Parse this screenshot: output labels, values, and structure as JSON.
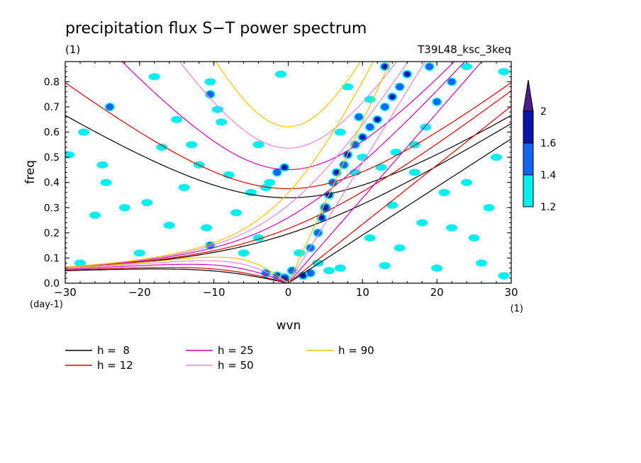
{
  "chart_data": {
    "type": "line",
    "title": "precipitation flux S−T power spectrum",
    "units_label": "(1)",
    "run_label": "T39L48_ksc_3keq",
    "xlabel": "wvn",
    "ylabel": "freq",
    "x_unit": "(1)",
    "y_unit": "(day-1)",
    "xlim": [
      -30,
      30
    ],
    "ylim": [
      0,
      0.88
    ],
    "x_ticks": [
      -30,
      -20,
      -10,
      0,
      10,
      20,
      30
    ],
    "x_tick_labels": [
      "−30",
      "−20",
      "−10",
      "0",
      "10",
      "20",
      "30"
    ],
    "y_ticks": [
      0,
      0.1,
      0.2,
      0.3,
      0.4,
      0.5,
      0.6,
      0.7,
      0.8
    ],
    "y_tick_labels": [
      "0.0",
      "0.1",
      "0.2",
      "0.3",
      "0.4",
      "0.5",
      "0.6",
      "0.7",
      "0.8"
    ],
    "legend": [
      {
        "label": "h =  8",
        "color": "#000000"
      },
      {
        "label": "h = 12",
        "color": "#d90000"
      },
      {
        "label": "h = 25",
        "color": "#d400b4"
      },
      {
        "label": "h = 50",
        "color": "#e887e0"
      },
      {
        "label": "h = 90",
        "color": "#f0c800"
      }
    ],
    "colorbar": {
      "labels": [
        "2",
        "1.6",
        "1.4",
        "1.2"
      ],
      "colors": [
        "#4b1e8c",
        "#0a14a8",
        "#1464f0",
        "#00f0f0"
      ]
    },
    "power_blobs": [
      {
        "x": -29.5,
        "y": 0.51,
        "level": 0
      },
      {
        "x": -27.5,
        "y": 0.6,
        "level": 0
      },
      {
        "x": -25,
        "y": 0.47,
        "level": 0
      },
      {
        "x": -24.5,
        "y": 0.4,
        "level": 0
      },
      {
        "x": -24,
        "y": 0.7,
        "level": 1
      },
      {
        "x": -26,
        "y": 0.27,
        "level": 0
      },
      {
        "x": -18,
        "y": 0.82,
        "level": 0
      },
      {
        "x": -17,
        "y": 0.54,
        "level": 0
      },
      {
        "x": -15,
        "y": 0.65,
        "level": 0
      },
      {
        "x": -14,
        "y": 0.38,
        "level": 0
      },
      {
        "x": -12,
        "y": 0.47,
        "level": 0
      },
      {
        "x": -10.5,
        "y": 0.8,
        "level": 0
      },
      {
        "x": -10.5,
        "y": 0.75,
        "level": 1
      },
      {
        "x": -9.5,
        "y": 0.69,
        "level": 0
      },
      {
        "x": -9,
        "y": 0.64,
        "level": 0
      },
      {
        "x": -11,
        "y": 0.22,
        "level": 0
      },
      {
        "x": -10.5,
        "y": 0.15,
        "level": 1
      },
      {
        "x": -8,
        "y": 0.43,
        "level": 0
      },
      {
        "x": -7,
        "y": 0.28,
        "level": 0
      },
      {
        "x": -5,
        "y": 0.36,
        "level": 0
      },
      {
        "x": -3,
        "y": 0.38,
        "level": 0
      },
      {
        "x": -2.5,
        "y": 0.4,
        "level": 0
      },
      {
        "x": -1.5,
        "y": 0.44,
        "level": 1
      },
      {
        "x": -0.5,
        "y": 0.46,
        "level": 2
      },
      {
        "x": -1,
        "y": 0.83,
        "level": 0
      },
      {
        "x": -4,
        "y": 0.55,
        "level": 0
      },
      {
        "x": -16,
        "y": 0.23,
        "level": 0
      },
      {
        "x": -20,
        "y": 0.12,
        "level": 0
      },
      {
        "x": -28,
        "y": 0.08,
        "level": 0
      },
      {
        "x": -22,
        "y": 0.3,
        "level": 0
      },
      {
        "x": -19,
        "y": 0.32,
        "level": 0
      },
      {
        "x": -13,
        "y": 0.55,
        "level": 0
      },
      {
        "x": -6,
        "y": 0.12,
        "level": 0
      },
      {
        "x": -4,
        "y": 0.18,
        "level": 0
      },
      {
        "x": -3,
        "y": 0.04,
        "level": 1
      },
      {
        "x": -1.5,
        "y": 0.03,
        "level": 2
      },
      {
        "x": -0.5,
        "y": 0.02,
        "level": 3
      },
      {
        "x": 0.5,
        "y": 0.05,
        "level": 1
      },
      {
        "x": 2,
        "y": 0.03,
        "level": 2
      },
      {
        "x": 3,
        "y": 0.04,
        "level": 1
      },
      {
        "x": 4,
        "y": 0.08,
        "level": 0
      },
      {
        "x": 5.5,
        "y": 0.05,
        "level": 0
      },
      {
        "x": 7,
        "y": 0.06,
        "level": 0
      },
      {
        "x": 1.5,
        "y": 0.12,
        "level": 0
      },
      {
        "x": 3,
        "y": 0.14,
        "level": 1
      },
      {
        "x": 4,
        "y": 0.2,
        "level": 1
      },
      {
        "x": 4.5,
        "y": 0.26,
        "level": 2
      },
      {
        "x": 5,
        "y": 0.3,
        "level": 3
      },
      {
        "x": 5.5,
        "y": 0.35,
        "level": 2
      },
      {
        "x": 6,
        "y": 0.4,
        "level": 1
      },
      {
        "x": 6.5,
        "y": 0.44,
        "level": 2
      },
      {
        "x": 7.5,
        "y": 0.47,
        "level": 1
      },
      {
        "x": 8,
        "y": 0.51,
        "level": 2
      },
      {
        "x": 9,
        "y": 0.55,
        "level": 1
      },
      {
        "x": 10,
        "y": 0.58,
        "level": 2
      },
      {
        "x": 11,
        "y": 0.62,
        "level": 1
      },
      {
        "x": 12,
        "y": 0.65,
        "level": 2
      },
      {
        "x": 13,
        "y": 0.7,
        "level": 1
      },
      {
        "x": 14,
        "y": 0.74,
        "level": 2
      },
      {
        "x": 15,
        "y": 0.78,
        "level": 1
      },
      {
        "x": 16,
        "y": 0.83,
        "level": 2
      },
      {
        "x": 13,
        "y": 0.86,
        "level": 2
      },
      {
        "x": 19,
        "y": 0.86,
        "level": 1
      },
      {
        "x": 22,
        "y": 0.8,
        "level": 1
      },
      {
        "x": 24,
        "y": 0.86,
        "level": 0
      },
      {
        "x": 20,
        "y": 0.72,
        "level": 1
      },
      {
        "x": 18.5,
        "y": 0.62,
        "level": 0
      },
      {
        "x": 17,
        "y": 0.55,
        "level": 0
      },
      {
        "x": 14.5,
        "y": 0.52,
        "level": 0
      },
      {
        "x": 12.5,
        "y": 0.46,
        "level": 0
      },
      {
        "x": 10,
        "y": 0.5,
        "level": 0
      },
      {
        "x": 9,
        "y": 0.44,
        "level": 0
      },
      {
        "x": 7,
        "y": 0.6,
        "level": 0
      },
      {
        "x": 9.5,
        "y": 0.66,
        "level": 1
      },
      {
        "x": 11,
        "y": 0.73,
        "level": 0
      },
      {
        "x": 8,
        "y": 0.78,
        "level": 0
      },
      {
        "x": 17,
        "y": 0.44,
        "level": 0
      },
      {
        "x": 21,
        "y": 0.36,
        "level": 0
      },
      {
        "x": 24,
        "y": 0.4,
        "level": 0
      },
      {
        "x": 27,
        "y": 0.3,
        "level": 0
      },
      {
        "x": 25,
        "y": 0.18,
        "level": 0
      },
      {
        "x": 22,
        "y": 0.22,
        "level": 0
      },
      {
        "x": 18,
        "y": 0.24,
        "level": 0
      },
      {
        "x": 14,
        "y": 0.31,
        "level": 0
      },
      {
        "x": 15,
        "y": 0.14,
        "level": 0
      },
      {
        "x": 11,
        "y": 0.18,
        "level": 0
      },
      {
        "x": 20,
        "y": 0.06,
        "level": 0
      },
      {
        "x": 26,
        "y": 0.08,
        "level": 0
      },
      {
        "x": 29,
        "y": 0.03,
        "level": 0
      },
      {
        "x": 13,
        "y": 0.07,
        "level": 0
      },
      {
        "x": 28,
        "y": 0.5,
        "level": 0
      },
      {
        "x": 29,
        "y": 0.84,
        "level": 0
      }
    ]
  }
}
